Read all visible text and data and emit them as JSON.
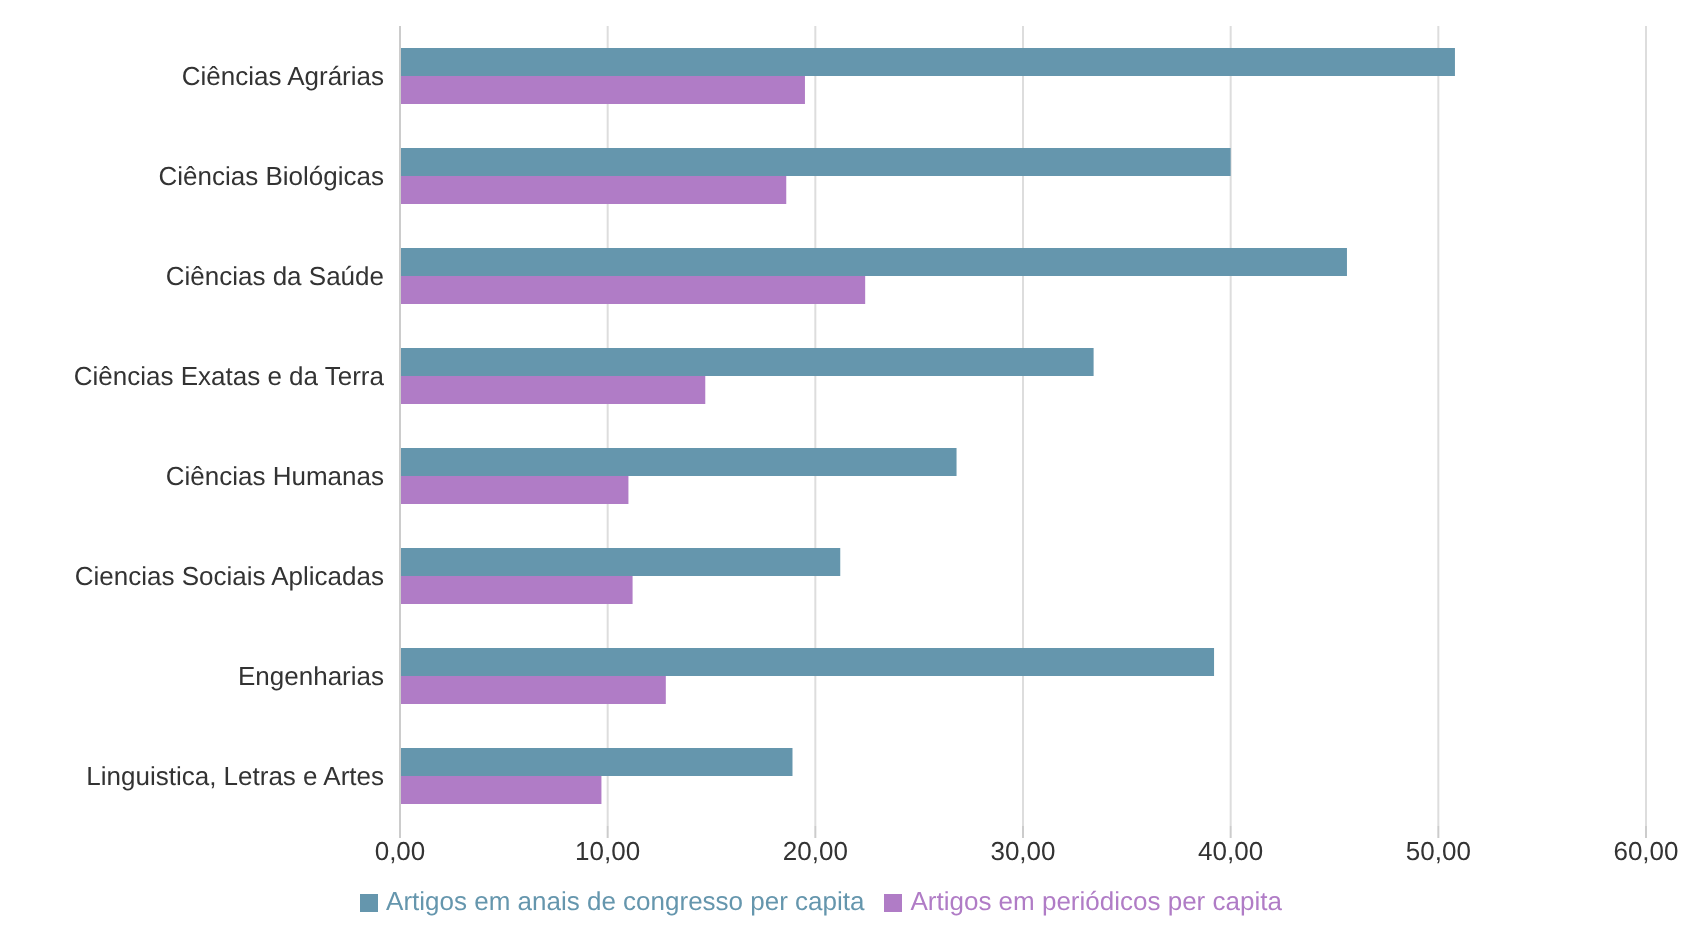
{
  "chart_data": {
    "type": "bar",
    "orientation": "horizontal",
    "categories": [
      "Ciências Agrárias",
      "Ciências Biológicas",
      "Ciências da Saúde",
      "Ciências Exatas e da Terra",
      "Ciências Humanas",
      "Ciencias Sociais Aplicadas",
      "Engenharias",
      "Linguistica, Letras e Artes"
    ],
    "series": [
      {
        "name": "Artigos em anais de congresso per capita",
        "color": "#6596ad",
        "values": [
          50.8,
          40.0,
          45.6,
          33.4,
          26.8,
          21.2,
          39.2,
          18.9
        ]
      },
      {
        "name": "Artigos em periódicos per capita",
        "color": "#b07cc6",
        "values": [
          19.5,
          18.6,
          22.4,
          14.7,
          11.0,
          11.2,
          12.8,
          9.7
        ]
      }
    ],
    "xlim": [
      0,
      60
    ],
    "xticks": [
      {
        "value": 0,
        "label": "0,00"
      },
      {
        "value": 10,
        "label": "10,00"
      },
      {
        "value": 20,
        "label": "20,00"
      },
      {
        "value": 30,
        "label": "30,00"
      },
      {
        "value": 40,
        "label": "40,00"
      },
      {
        "value": 50,
        "label": "50,00"
      },
      {
        "value": 60,
        "label": "60,00"
      }
    ],
    "grid": "x",
    "legend": "bottom"
  }
}
